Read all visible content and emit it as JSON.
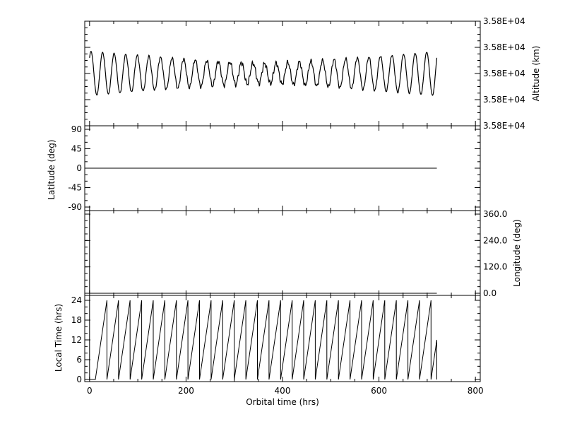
{
  "chart_data": [
    {
      "type": "line",
      "ylabel": "Altitude (km)",
      "y_tick_labels": [
        "3.58E+04",
        "3.58E+04",
        "3.58E+04",
        "3.58E+04",
        "3.58E+04"
      ],
      "ylim_relative": [
        -2,
        2
      ],
      "series_description": "oscillation with ~24 hr period, amplitude larger near start and end, smaller mid-range",
      "x_range": [
        0,
        720
      ],
      "period_hrs": 24
    },
    {
      "type": "line",
      "ylabel": "Latitude (deg)",
      "y_ticks": [
        90,
        45,
        0,
        -45,
        -90
      ],
      "y_tick_labels": [
        "90",
        "45",
        "0",
        "-45",
        "-90"
      ],
      "ylim": [
        -90,
        90
      ],
      "x": [
        0,
        720
      ],
      "y": [
        0,
        0
      ]
    },
    {
      "type": "line",
      "ylabel": "Longitude (deg)",
      "y_ticks": [
        0,
        120,
        240,
        360
      ],
      "y_tick_labels": [
        "0.0",
        "120.0",
        "240.0",
        "360.0"
      ],
      "ylim": [
        0,
        360
      ],
      "x": [
        0,
        0,
        720
      ],
      "y": [
        360,
        0,
        0
      ]
    },
    {
      "type": "line",
      "ylabel": "Local Time (hrs)",
      "y_ticks": [
        0,
        6,
        12,
        18,
        24
      ],
      "y_tick_labels": [
        "0",
        "6",
        "12",
        "18",
        "24"
      ],
      "ylim": [
        0,
        24
      ],
      "sawtooth_period_hrs": 24,
      "x_range": [
        0,
        720
      ]
    }
  ],
  "x_axis": {
    "label": "Orbital time (hrs)",
    "ticks": [
      0,
      200,
      400,
      600,
      800
    ],
    "tick_labels": [
      "0",
      "200",
      "400",
      "600",
      "800"
    ],
    "xlim": [
      -10,
      810
    ]
  },
  "colors": {
    "line": "#000000",
    "background": "#ffffff"
  }
}
